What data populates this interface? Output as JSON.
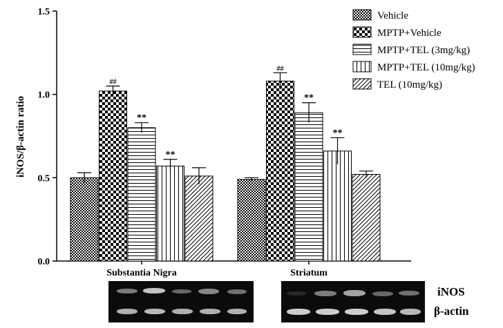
{
  "chart_data": {
    "type": "bar",
    "ylabel": "iNOS/β-actin ratio",
    "xlabel": "",
    "ylim": [
      0,
      1.5
    ],
    "yticks": [
      "0.0",
      "0.5",
      "1.0",
      "1.5"
    ],
    "categories": [
      "Substantia Nigra",
      "Striatum"
    ],
    "series": [
      {
        "name": "Vehicle",
        "pattern": "checker-fine",
        "values": [
          0.5,
          0.49
        ],
        "errors": [
          0.03,
          0.01
        ],
        "annotations": [
          "",
          ""
        ]
      },
      {
        "name": "MPTP+Vehicle",
        "pattern": "checker-coarse",
        "values": [
          1.02,
          1.08
        ],
        "errors": [
          0.03,
          0.05
        ],
        "annotations": [
          "##",
          "##"
        ]
      },
      {
        "name": "MPTP+TEL (3mg/kg)",
        "pattern": "horizontal-lines",
        "values": [
          0.8,
          0.89
        ],
        "errors": [
          0.03,
          0.06
        ],
        "annotations": [
          "**",
          "**"
        ]
      },
      {
        "name": "MPTP+TEL (10mg/kg)",
        "pattern": "vertical-lines",
        "values": [
          0.57,
          0.66
        ],
        "errors": [
          0.04,
          0.08
        ],
        "annotations": [
          "**",
          "**"
        ]
      },
      {
        "name": "TEL (10mg/kg)",
        "pattern": "diagonal-lines",
        "values": [
          0.51,
          0.52
        ],
        "errors": [
          0.05,
          0.02
        ],
        "annotations": [
          "",
          ""
        ]
      }
    ],
    "legend_position": "top-right",
    "grid": false
  },
  "blots": {
    "labels": [
      "iNOS",
      "β-actin"
    ]
  },
  "colors": {
    "ink": "#000000",
    "background": "#ffffff",
    "blot_background": "#0b0b0b",
    "band": "#d8d8d8"
  }
}
